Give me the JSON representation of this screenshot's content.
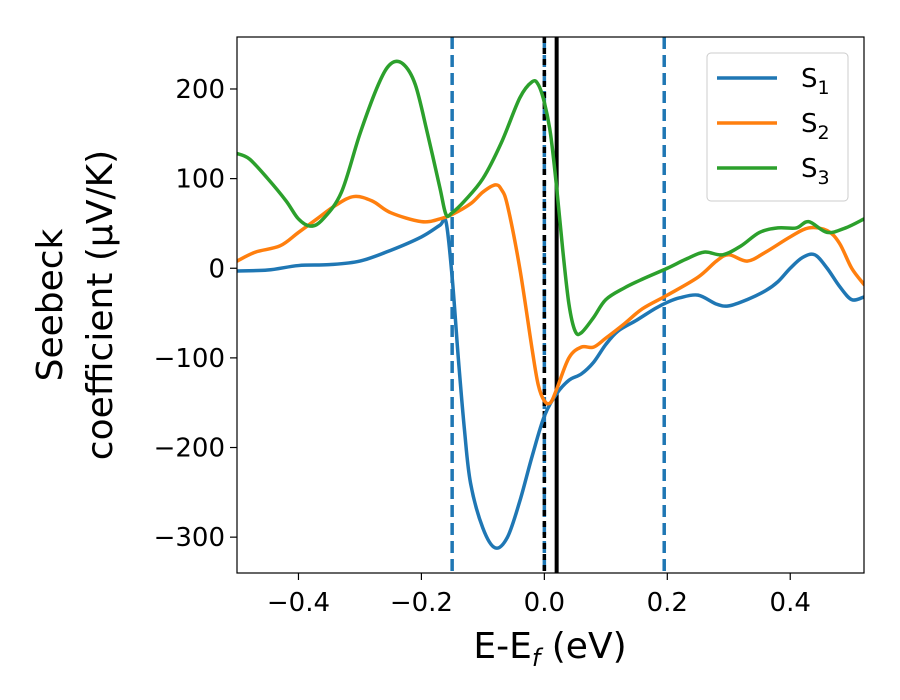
{
  "chart_data": {
    "type": "line",
    "xlabel": "E-E",
    "xlabel_sub": "f",
    "xlabel_unit": " (eV)",
    "ylabel_line1": "Seebeck",
    "ylabel_line2": "coefficient  (μV/K)",
    "xlim": [
      -0.5,
      0.52
    ],
    "ylim": [
      -340,
      258
    ],
    "xticks": [
      -0.4,
      -0.2,
      0.0,
      0.2,
      0.4
    ],
    "xtick_labels": [
      "−0.4",
      "−0.2",
      "0.0",
      "0.2",
      "0.4"
    ],
    "yticks": [
      -300,
      -200,
      -100,
      0,
      100,
      200
    ],
    "ytick_labels": [
      "−300",
      "−200",
      "−100",
      "0",
      "100",
      "200"
    ],
    "grid": false,
    "legend_position": "top-right",
    "series": [
      {
        "name": "S",
        "sub": "1",
        "color": "#1f77b4",
        "points": [
          [
            -0.5,
            -3
          ],
          [
            -0.45,
            -2
          ],
          [
            -0.4,
            3
          ],
          [
            -0.35,
            4
          ],
          [
            -0.3,
            8
          ],
          [
            -0.25,
            20
          ],
          [
            -0.2,
            35
          ],
          [
            -0.17,
            48
          ],
          [
            -0.16,
            52
          ],
          [
            -0.15,
            -10
          ],
          [
            -0.14,
            -100
          ],
          [
            -0.13,
            -180
          ],
          [
            -0.12,
            -240
          ],
          [
            -0.1,
            -290
          ],
          [
            -0.08,
            -312
          ],
          [
            -0.06,
            -300
          ],
          [
            -0.04,
            -260
          ],
          [
            -0.02,
            -210
          ],
          [
            0.0,
            -165
          ],
          [
            0.02,
            -140
          ],
          [
            0.04,
            -125
          ],
          [
            0.06,
            -118
          ],
          [
            0.08,
            -105
          ],
          [
            0.1,
            -85
          ],
          [
            0.12,
            -70
          ],
          [
            0.15,
            -58
          ],
          [
            0.18,
            -45
          ],
          [
            0.2,
            -38
          ],
          [
            0.22,
            -33
          ],
          [
            0.25,
            -30
          ],
          [
            0.28,
            -40
          ],
          [
            0.3,
            -42
          ],
          [
            0.33,
            -35
          ],
          [
            0.36,
            -25
          ],
          [
            0.38,
            -15
          ],
          [
            0.4,
            0
          ],
          [
            0.42,
            12
          ],
          [
            0.44,
            15
          ],
          [
            0.46,
            0
          ],
          [
            0.48,
            -20
          ],
          [
            0.5,
            -35
          ],
          [
            0.52,
            -32
          ]
        ]
      },
      {
        "name": "S",
        "sub": "2",
        "color": "#ff7f0e",
        "points": [
          [
            -0.5,
            8
          ],
          [
            -0.47,
            18
          ],
          [
            -0.43,
            25
          ],
          [
            -0.4,
            40
          ],
          [
            -0.37,
            55
          ],
          [
            -0.34,
            70
          ],
          [
            -0.31,
            80
          ],
          [
            -0.28,
            75
          ],
          [
            -0.25,
            62
          ],
          [
            -0.2,
            52
          ],
          [
            -0.17,
            55
          ],
          [
            -0.15,
            60
          ],
          [
            -0.12,
            72
          ],
          [
            -0.1,
            85
          ],
          [
            -0.08,
            93
          ],
          [
            -0.07,
            88
          ],
          [
            -0.06,
            70
          ],
          [
            -0.04,
            0
          ],
          [
            -0.02,
            -90
          ],
          [
            -0.01,
            -130
          ],
          [
            0.0,
            -148
          ],
          [
            0.01,
            -150
          ],
          [
            0.02,
            -135
          ],
          [
            0.04,
            -100
          ],
          [
            0.06,
            -88
          ],
          [
            0.08,
            -88
          ],
          [
            0.1,
            -78
          ],
          [
            0.13,
            -62
          ],
          [
            0.16,
            -45
          ],
          [
            0.2,
            -30
          ],
          [
            0.25,
            -10
          ],
          [
            0.28,
            8
          ],
          [
            0.3,
            15
          ],
          [
            0.33,
            8
          ],
          [
            0.36,
            18
          ],
          [
            0.4,
            35
          ],
          [
            0.43,
            45
          ],
          [
            0.46,
            42
          ],
          [
            0.48,
            28
          ],
          [
            0.5,
            0
          ],
          [
            0.52,
            -18
          ]
        ]
      },
      {
        "name": "S",
        "sub": "3",
        "color": "#2ca02c",
        "points": [
          [
            -0.5,
            128
          ],
          [
            -0.48,
            122
          ],
          [
            -0.45,
            100
          ],
          [
            -0.42,
            75
          ],
          [
            -0.4,
            55
          ],
          [
            -0.38,
            47
          ],
          [
            -0.36,
            55
          ],
          [
            -0.33,
            85
          ],
          [
            -0.3,
            150
          ],
          [
            -0.27,
            205
          ],
          [
            -0.25,
            228
          ],
          [
            -0.23,
            228
          ],
          [
            -0.21,
            205
          ],
          [
            -0.19,
            150
          ],
          [
            -0.17,
            90
          ],
          [
            -0.16,
            60
          ],
          [
            -0.15,
            62
          ],
          [
            -0.13,
            75
          ],
          [
            -0.1,
            100
          ],
          [
            -0.07,
            140
          ],
          [
            -0.04,
            190
          ],
          [
            -0.02,
            208
          ],
          [
            -0.01,
            205
          ],
          [
            0.0,
            185
          ],
          [
            0.01,
            150
          ],
          [
            0.02,
            90
          ],
          [
            0.03,
            20
          ],
          [
            0.04,
            -40
          ],
          [
            0.05,
            -70
          ],
          [
            0.06,
            -72
          ],
          [
            0.08,
            -55
          ],
          [
            0.1,
            -35
          ],
          [
            0.13,
            -22
          ],
          [
            0.16,
            -12
          ],
          [
            0.2,
            0
          ],
          [
            0.23,
            10
          ],
          [
            0.26,
            18
          ],
          [
            0.29,
            15
          ],
          [
            0.32,
            25
          ],
          [
            0.35,
            40
          ],
          [
            0.38,
            45
          ],
          [
            0.41,
            45
          ],
          [
            0.43,
            52
          ],
          [
            0.46,
            40
          ],
          [
            0.49,
            45
          ],
          [
            0.52,
            55
          ]
        ]
      }
    ],
    "vlines": [
      {
        "x": -0.15,
        "style": "dashed",
        "color": "#1f77b4"
      },
      {
        "x": 0.0,
        "style": "dashed",
        "color": "#1f77b4"
      },
      {
        "x": 0.0,
        "style": "dashed",
        "color": "#000000"
      },
      {
        "x": 0.02,
        "style": "solid",
        "color": "#000000"
      },
      {
        "x": 0.195,
        "style": "dashed",
        "color": "#1f77b4"
      }
    ]
  }
}
